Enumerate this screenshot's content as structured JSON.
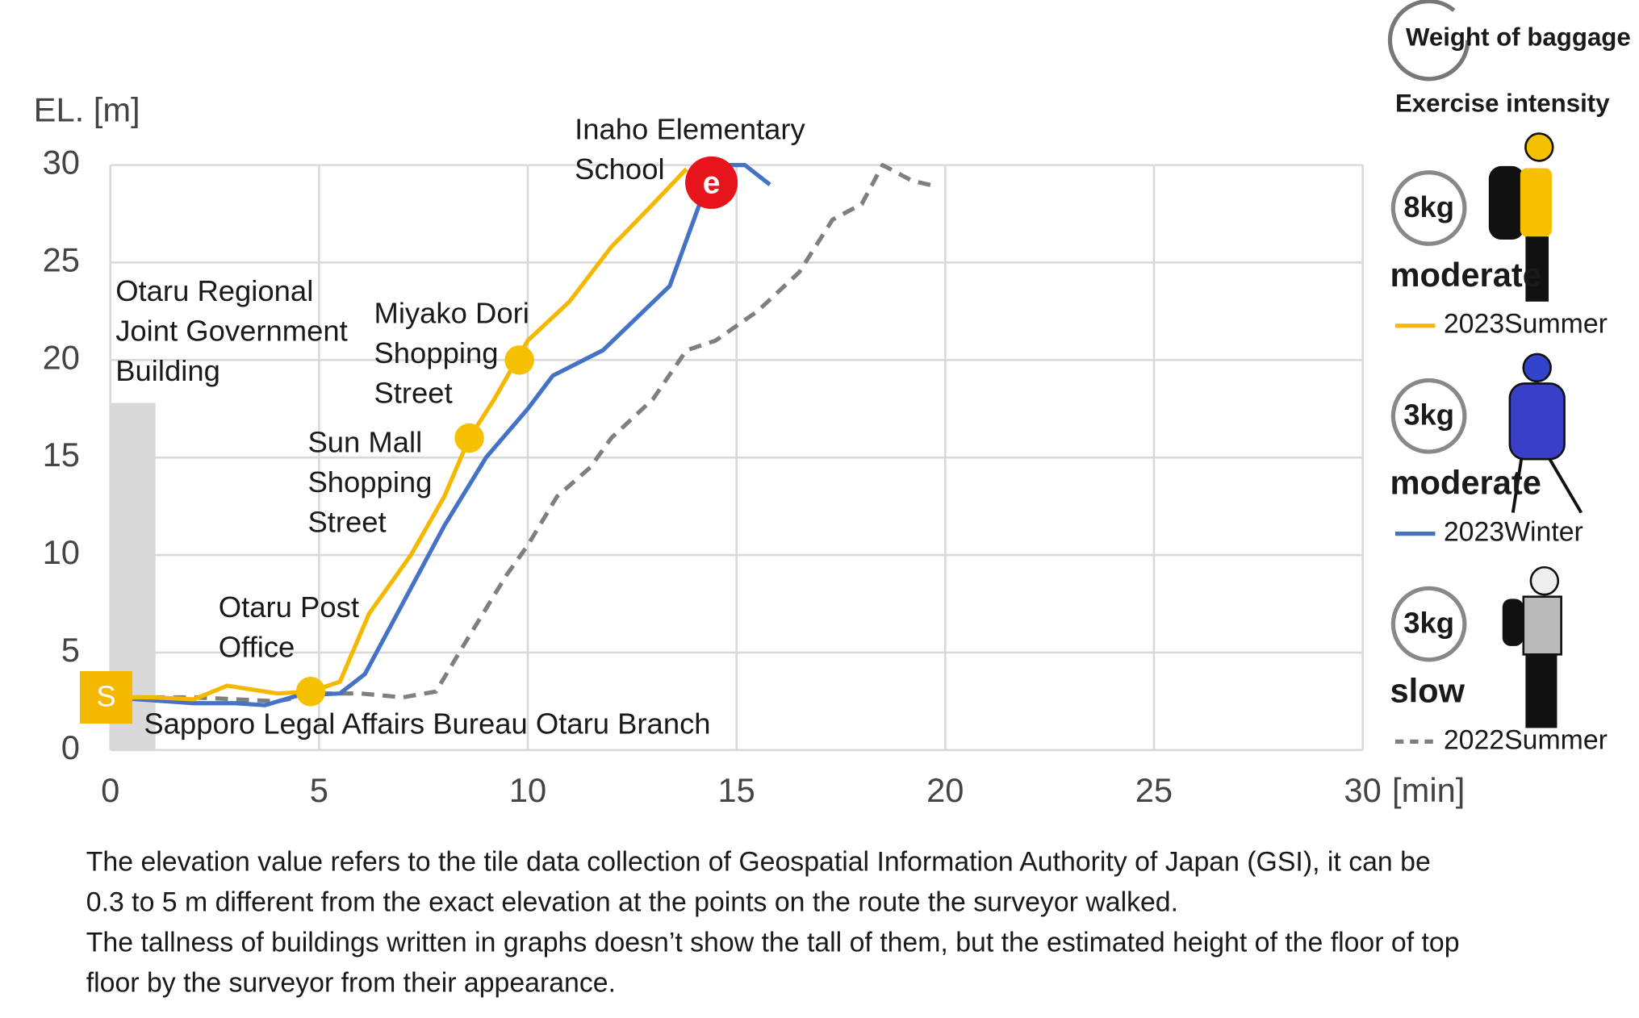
{
  "chart_data": {
    "type": "line",
    "y_label": "EL. [m]",
    "x_label": "[min]",
    "xlim": [
      0,
      30
    ],
    "ylim": [
      0,
      30
    ],
    "xticks": [
      0,
      5,
      10,
      15,
      20,
      25,
      30
    ],
    "yticks": [
      0,
      5,
      10,
      15,
      20,
      25,
      30
    ],
    "grid": true,
    "legend_header": {
      "weight": "Weight of baggage",
      "intensity": "Exercise intensity"
    },
    "series": [
      {
        "name": "2023Summer",
        "color": "#f5b800",
        "dash": "solid",
        "weight": "8kg",
        "intensity": "moderate",
        "x": [
          0,
          1,
          2,
          2.8,
          4,
          4.8,
          5.5,
          6.2,
          7.2,
          8,
          8.6,
          9.2,
          10,
          11,
          12,
          13,
          13.8
        ],
        "values": [
          2.7,
          2.7,
          2.6,
          3.3,
          2.9,
          3,
          3.5,
          7,
          10,
          13,
          16,
          18,
          21,
          23,
          25.8,
          28,
          29.8
        ]
      },
      {
        "name": "2023Winter",
        "color": "#4472c4",
        "dash": "solid",
        "weight": "3kg",
        "intensity": "moderate",
        "x": [
          0,
          2,
          3,
          3.7,
          4.5,
          5.5,
          6.1,
          7,
          8,
          9,
          10,
          10.6,
          11.8,
          13.4,
          14.2,
          14.8,
          15.2,
          15.8
        ],
        "values": [
          2.7,
          2.4,
          2.4,
          2.3,
          2.8,
          2.9,
          3.9,
          7.5,
          11.5,
          15,
          17.5,
          19.2,
          20.5,
          23.8,
          28.5,
          30,
          30,
          29
        ]
      },
      {
        "name": "2022Summer",
        "color": "#7f7f7f",
        "dash": "dashed",
        "weight": "3kg",
        "intensity": "slow",
        "x": [
          0,
          2,
          4,
          5,
          6,
          7,
          7.8,
          8.5,
          9.5,
          10,
          10.7,
          11.5,
          12,
          13,
          13.8,
          14.5,
          15.5,
          16.5,
          17.3,
          18,
          18.5,
          19.2,
          19.8
        ],
        "values": [
          2.7,
          2.7,
          2.5,
          2.9,
          2.9,
          2.7,
          3,
          5.5,
          9,
          10.5,
          13,
          14.5,
          16,
          18,
          20.5,
          21,
          22.5,
          24.5,
          27.2,
          28,
          30,
          29.2,
          28.9
        ]
      }
    ],
    "building": {
      "lines": [
        "Otaru Regional",
        "Joint Government",
        "Building"
      ],
      "height": 17.8,
      "color": "#d9d9d9"
    },
    "annotations": [
      {
        "lines": [
          "Sapporo Legal Affairs Bureau Otaru Branch"
        ],
        "marker": "S",
        "x": 0,
        "y": 2.7,
        "color": "#f5b800"
      },
      {
        "lines": [
          "Otaru Post",
          "Office"
        ],
        "x": 4.8,
        "y": 3,
        "color": "#f5c000"
      },
      {
        "lines": [
          "Sun Mall",
          "Shopping",
          "Street"
        ],
        "x": 8.6,
        "y": 16,
        "color": "#f5c000"
      },
      {
        "lines": [
          "Miyako Dori",
          "Shopping",
          "Street"
        ],
        "x": 9.8,
        "y": 20,
        "color": "#f5c000"
      },
      {
        "lines": [
          "Inaho Elementary",
          "School"
        ],
        "marker": "e",
        "x": 14.4,
        "y": 29.1,
        "color": "#e8141c"
      }
    ],
    "notes": [
      [
        "The elevation value refers to the tile data collection of Geospatial Information Authority of Japan (GSI), it can be",
        "0.3 to 5 m different from the exact elevation at the points on the route the surveyor walked."
      ],
      [
        "The tallness of buildings written in graphs doesn’t show the tall of them, but the estimated height of the floor of top",
        "floor by the surveyor from their appearance."
      ]
    ]
  }
}
